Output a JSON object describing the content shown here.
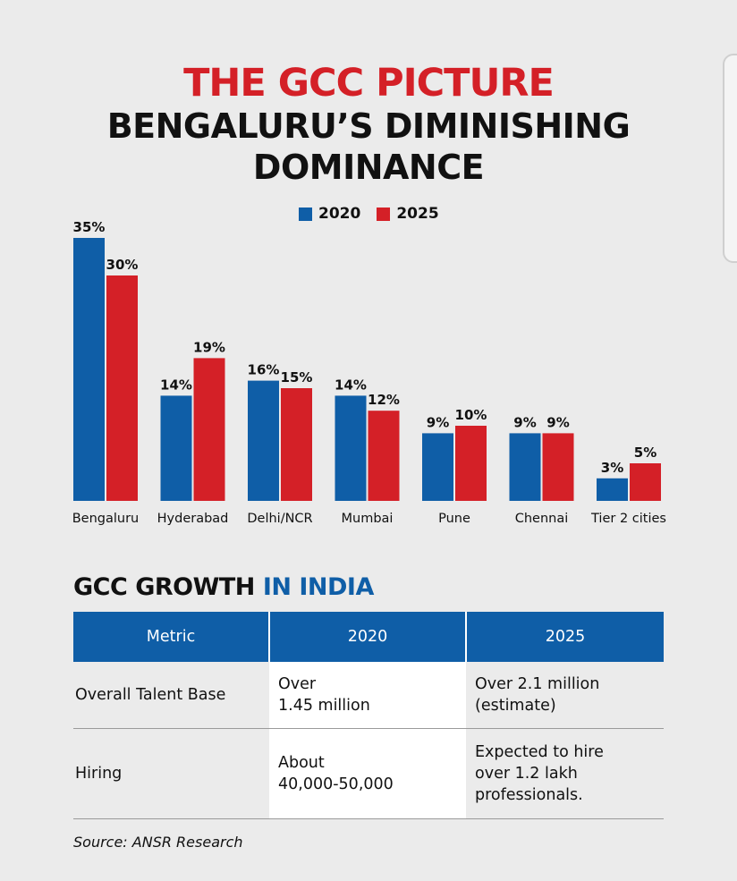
{
  "title": "THE GCC PICTURE",
  "subtitle_lines": [
    "BENGALURU’S DIMINISHING",
    "DOMINANCE"
  ],
  "colors": {
    "y2020": "#0f5ea7",
    "y2025": "#d42027",
    "title_accent": "#d42027",
    "section_accent": "#0f5ea7"
  },
  "chart_data": {
    "type": "bar",
    "title": "THE GCC PICTURE",
    "subtitle": "BENGALURU’S DIMINISHING DOMINANCE",
    "categories": [
      "Bengaluru",
      "Hyderabad",
      "Delhi/NCR",
      "Mumbai",
      "Pune",
      "Chennai",
      "Tier 2 cities"
    ],
    "series": [
      {
        "name": "2020",
        "values": [
          35,
          14,
          16,
          14,
          9,
          9,
          3
        ]
      },
      {
        "name": "2025",
        "values": [
          30,
          19,
          15,
          12,
          10,
          9,
          5
        ]
      }
    ],
    "unit": "%",
    "ylim": [
      0,
      35
    ],
    "grid": false,
    "legend_position": "top"
  },
  "table_section": {
    "title_main": "GCC GROWTH",
    "title_accent": "IN INDIA",
    "headers": [
      "Metric",
      "2020",
      "2025"
    ],
    "rows": [
      [
        "Overall Talent Base",
        "Over\n1.45 million",
        "Over 2.1 million\n(estimate)"
      ],
      [
        "Hiring",
        "About\n40,000-50,000",
        "Expected to hire\nover 1.2 lakh\nprofessionals."
      ]
    ]
  },
  "source": "Source: ANSR Research"
}
